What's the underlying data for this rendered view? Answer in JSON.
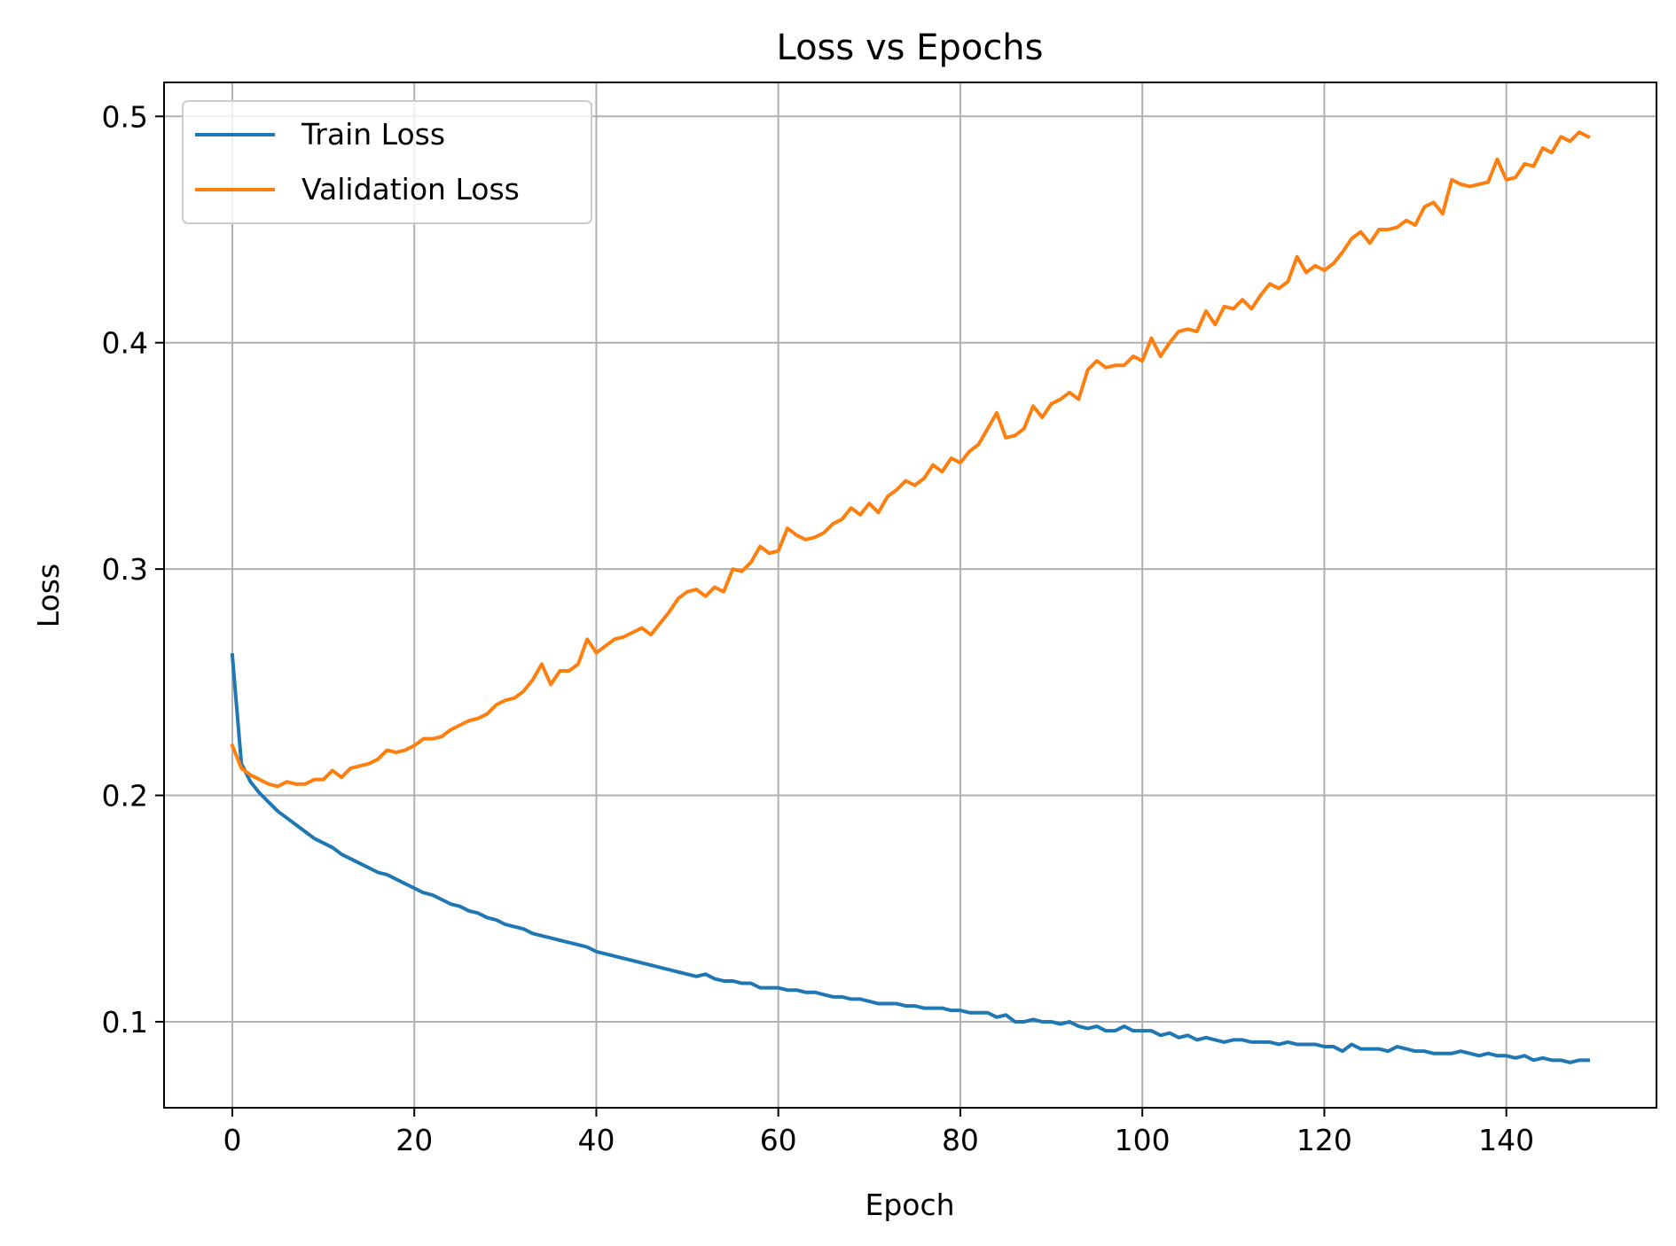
{
  "chart_data": {
    "type": "line",
    "title": "Loss vs Epochs",
    "xlabel": "Epoch",
    "ylabel": "Loss",
    "xlim": [
      -7.5,
      156.5
    ],
    "ylim": [
      0.062,
      0.515
    ],
    "xticks": [
      0,
      20,
      40,
      60,
      80,
      100,
      120,
      140
    ],
    "yticks": [
      0.1,
      0.2,
      0.3,
      0.4,
      0.5
    ],
    "xtick_labels": [
      "0",
      "20",
      "40",
      "60",
      "80",
      "100",
      "120",
      "140"
    ],
    "ytick_labels": [
      "0.1",
      "0.2",
      "0.3",
      "0.4",
      "0.5"
    ],
    "grid": true,
    "legend_position": "upper-left",
    "x": [
      0,
      1,
      2,
      3,
      4,
      5,
      6,
      7,
      8,
      9,
      10,
      11,
      12,
      13,
      14,
      15,
      16,
      17,
      18,
      19,
      20,
      21,
      22,
      23,
      24,
      25,
      26,
      27,
      28,
      29,
      30,
      31,
      32,
      33,
      34,
      35,
      36,
      37,
      38,
      39,
      40,
      41,
      42,
      43,
      44,
      45,
      46,
      47,
      48,
      49,
      50,
      51,
      52,
      53,
      54,
      55,
      56,
      57,
      58,
      59,
      60,
      61,
      62,
      63,
      64,
      65,
      66,
      67,
      68,
      69,
      70,
      71,
      72,
      73,
      74,
      75,
      76,
      77,
      78,
      79,
      80,
      81,
      82,
      83,
      84,
      85,
      86,
      87,
      88,
      89,
      90,
      91,
      92,
      93,
      94,
      95,
      96,
      97,
      98,
      99,
      100,
      101,
      102,
      103,
      104,
      105,
      106,
      107,
      108,
      109,
      110,
      111,
      112,
      113,
      114,
      115,
      116,
      117,
      118,
      119,
      120,
      121,
      122,
      123,
      124,
      125,
      126,
      127,
      128,
      129,
      130,
      131,
      132,
      133,
      134,
      135,
      136,
      137,
      138,
      139,
      140,
      141,
      142,
      143,
      144,
      145,
      146,
      147,
      148,
      149
    ],
    "series": [
      {
        "name": "Train Loss",
        "color": "#1f77b4",
        "values": [
          0.262,
          0.214,
          0.206,
          0.201,
          0.197,
          0.193,
          0.19,
          0.187,
          0.184,
          0.181,
          0.179,
          0.177,
          0.174,
          0.172,
          0.17,
          0.168,
          0.166,
          0.165,
          0.163,
          0.161,
          0.159,
          0.157,
          0.156,
          0.154,
          0.152,
          0.151,
          0.149,
          0.148,
          0.146,
          0.145,
          0.143,
          0.142,
          0.141,
          0.139,
          0.138,
          0.137,
          0.136,
          0.135,
          0.134,
          0.133,
          0.131,
          0.13,
          0.129,
          0.128,
          0.127,
          0.126,
          0.125,
          0.124,
          0.123,
          0.122,
          0.121,
          0.12,
          0.121,
          0.119,
          0.118,
          0.118,
          0.117,
          0.117,
          0.115,
          0.115,
          0.115,
          0.114,
          0.114,
          0.113,
          0.113,
          0.112,
          0.111,
          0.111,
          0.11,
          0.11,
          0.109,
          0.108,
          0.108,
          0.108,
          0.107,
          0.107,
          0.106,
          0.106,
          0.106,
          0.105,
          0.105,
          0.104,
          0.104,
          0.104,
          0.102,
          0.103,
          0.1,
          0.1,
          0.101,
          0.1,
          0.1,
          0.099,
          0.1,
          0.098,
          0.097,
          0.098,
          0.096,
          0.096,
          0.098,
          0.096,
          0.096,
          0.096,
          0.094,
          0.095,
          0.093,
          0.094,
          0.092,
          0.093,
          0.092,
          0.091,
          0.092,
          0.092,
          0.091,
          0.091,
          0.091,
          0.09,
          0.091,
          0.09,
          0.09,
          0.09,
          0.089,
          0.089,
          0.087,
          0.09,
          0.088,
          0.088,
          0.088,
          0.087,
          0.089,
          0.088,
          0.087,
          0.087,
          0.086,
          0.086,
          0.086,
          0.087,
          0.086,
          0.085,
          0.086,
          0.085,
          0.085,
          0.084,
          0.085,
          0.083,
          0.084,
          0.083,
          0.083,
          0.082,
          0.083,
          0.083
        ]
      },
      {
        "name": "Validation Loss",
        "color": "#ff7f0e",
        "values": [
          0.222,
          0.212,
          0.209,
          0.207,
          0.205,
          0.204,
          0.206,
          0.205,
          0.205,
          0.207,
          0.207,
          0.211,
          0.208,
          0.212,
          0.213,
          0.214,
          0.216,
          0.22,
          0.219,
          0.22,
          0.222,
          0.225,
          0.225,
          0.226,
          0.229,
          0.231,
          0.233,
          0.234,
          0.236,
          0.24,
          0.242,
          0.243,
          0.246,
          0.251,
          0.258,
          0.249,
          0.255,
          0.255,
          0.258,
          0.269,
          0.263,
          0.266,
          0.269,
          0.27,
          0.272,
          0.274,
          0.271,
          0.276,
          0.281,
          0.287,
          0.29,
          0.291,
          0.288,
          0.292,
          0.29,
          0.3,
          0.299,
          0.303,
          0.31,
          0.307,
          0.308,
          0.318,
          0.315,
          0.313,
          0.314,
          0.316,
          0.32,
          0.322,
          0.327,
          0.324,
          0.329,
          0.325,
          0.332,
          0.335,
          0.339,
          0.337,
          0.34,
          0.346,
          0.343,
          0.349,
          0.347,
          0.352,
          0.355,
          0.362,
          0.369,
          0.358,
          0.359,
          0.362,
          0.372,
          0.367,
          0.373,
          0.375,
          0.378,
          0.375,
          0.388,
          0.392,
          0.389,
          0.39,
          0.39,
          0.394,
          0.392,
          0.402,
          0.394,
          0.4,
          0.405,
          0.406,
          0.405,
          0.414,
          0.408,
          0.416,
          0.415,
          0.419,
          0.415,
          0.421,
          0.426,
          0.424,
          0.427,
          0.438,
          0.431,
          0.434,
          0.432,
          0.435,
          0.44,
          0.446,
          0.449,
          0.444,
          0.45,
          0.45,
          0.451,
          0.454,
          0.452,
          0.46,
          0.462,
          0.457,
          0.472,
          0.47,
          0.469,
          0.47,
          0.471,
          0.481,
          0.472,
          0.473,
          0.479,
          0.478,
          0.486,
          0.484,
          0.491,
          0.489,
          0.493,
          0.491
        ]
      }
    ]
  }
}
